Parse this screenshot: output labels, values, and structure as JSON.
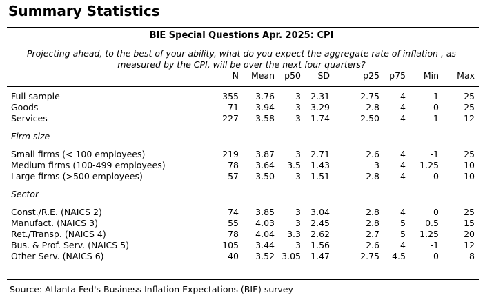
{
  "title": "Summary Statistics",
  "subtitle": "BIE Special Questions Apr. 2025: CPI",
  "question": "Projecting ahead, to the best of your ability, what do you expect the aggregate rate of inflation , as measured by the CPI, will be over the next four quarters?",
  "columns": [
    "N",
    "Mean",
    "p50",
    "SD",
    "p25",
    "p75",
    "Min",
    "Max"
  ],
  "groups": [
    {
      "label": "",
      "rows": [
        {
          "label": "Full sample",
          "values": [
            "355",
            "3.76",
            "3",
            "2.31",
            "2.75",
            "4",
            "-1",
            "25"
          ]
        },
        {
          "label": "Goods",
          "values": [
            "71",
            "3.94",
            "3",
            "3.29",
            "2.8",
            "4",
            "0",
            "25"
          ]
        },
        {
          "label": "Services",
          "values": [
            "227",
            "3.58",
            "3",
            "1.74",
            "2.50",
            "4",
            "-1",
            "12"
          ]
        }
      ]
    },
    {
      "label": "Firm size",
      "rows": [
        {
          "label": "Small firms (< 100 employees)",
          "values": [
            "219",
            "3.87",
            "3",
            "2.71",
            "2.6",
            "4",
            "-1",
            "25"
          ]
        },
        {
          "label": "Medium firms (100-499 employees)",
          "values": [
            "78",
            "3.64",
            "3.5",
            "1.43",
            "3",
            "4",
            "1.25",
            "10"
          ]
        },
        {
          "label": "Large firms (>500 employees)",
          "values": [
            "57",
            "3.50",
            "3",
            "1.51",
            "2.8",
            "4",
            "0",
            "10"
          ]
        }
      ]
    },
    {
      "label": "Sector",
      "rows": [
        {
          "label": "Const./R.E. (NAICS 2)",
          "values": [
            "74",
            "3.85",
            "3",
            "3.04",
            "2.8",
            "4",
            "0",
            "25"
          ]
        },
        {
          "label": "Manufact. (NAICS 3)",
          "values": [
            "55",
            "4.03",
            "3",
            "2.45",
            "2.8",
            "5",
            "0.5",
            "15"
          ]
        },
        {
          "label": "Ret./Transp. (NAICS 4)",
          "values": [
            "78",
            "4.04",
            "3.3",
            "2.62",
            "2.7",
            "5",
            "1.25",
            "20"
          ]
        },
        {
          "label": "Bus. & Prof. Serv. (NAICS 5)",
          "values": [
            "105",
            "3.44",
            "3",
            "1.56",
            "2.6",
            "4",
            "-1",
            "12"
          ]
        },
        {
          "label": "Other Serv. (NAICS 6)",
          "values": [
            "40",
            "3.52",
            "3.05",
            "1.47",
            "2.75",
            "4.5",
            "0",
            "8"
          ]
        }
      ]
    }
  ],
  "source": "Source: Atlanta Fed's Business Inflation Expectations (BIE) survey"
}
